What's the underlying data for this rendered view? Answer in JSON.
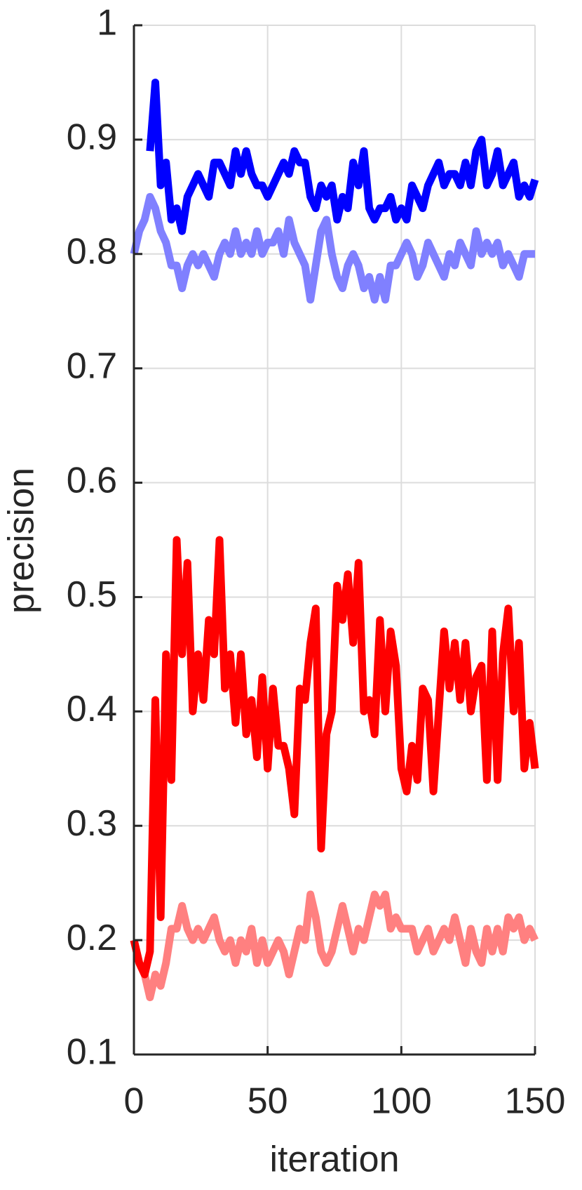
{
  "chart_data": {
    "type": "line",
    "xlabel": "iteration",
    "ylabel": "precision",
    "x": [
      0,
      2,
      4,
      6,
      8,
      10,
      12,
      14,
      16,
      18,
      20,
      22,
      24,
      26,
      28,
      30,
      32,
      34,
      36,
      38,
      40,
      42,
      44,
      46,
      48,
      50,
      52,
      54,
      56,
      58,
      60,
      62,
      64,
      66,
      68,
      70,
      72,
      74,
      76,
      78,
      80,
      82,
      84,
      86,
      88,
      90,
      92,
      94,
      96,
      98,
      100,
      102,
      104,
      106,
      108,
      110,
      112,
      114,
      116,
      118,
      120,
      122,
      124,
      126,
      128,
      130,
      132,
      134,
      136,
      138,
      140,
      142,
      144,
      146,
      148,
      150
    ],
    "series": [
      {
        "color": "#8080ff",
        "values": [
          0.8,
          0.82,
          0.83,
          0.85,
          0.84,
          0.82,
          0.81,
          0.79,
          0.79,
          0.77,
          0.79,
          0.8,
          0.79,
          0.8,
          0.79,
          0.78,
          0.8,
          0.81,
          0.8,
          0.82,
          0.8,
          0.81,
          0.8,
          0.82,
          0.8,
          0.81,
          0.81,
          0.82,
          0.8,
          0.83,
          0.81,
          0.8,
          0.79,
          0.76,
          0.79,
          0.82,
          0.83,
          0.8,
          0.78,
          0.77,
          0.79,
          0.8,
          0.79,
          0.77,
          0.78,
          0.76,
          0.78,
          0.76,
          0.79,
          0.79,
          0.8,
          0.81,
          0.8,
          0.78,
          0.79,
          0.81,
          0.8,
          0.79,
          0.78,
          0.8,
          0.79,
          0.81,
          0.8,
          0.79,
          0.82,
          0.8,
          0.81,
          0.8,
          0.81,
          0.79,
          0.8,
          0.79,
          0.78,
          0.8,
          0.8,
          0.8
        ]
      },
      {
        "color": "#0000ff",
        "values": [
          null,
          null,
          null,
          0.89,
          0.95,
          0.86,
          0.88,
          0.83,
          0.84,
          0.82,
          0.85,
          0.86,
          0.87,
          0.86,
          0.85,
          0.88,
          0.88,
          0.87,
          0.86,
          0.89,
          0.87,
          0.89,
          0.87,
          0.86,
          0.86,
          0.85,
          0.86,
          0.87,
          0.88,
          0.87,
          0.89,
          0.88,
          0.88,
          0.85,
          0.84,
          0.86,
          0.85,
          0.86,
          0.83,
          0.85,
          0.84,
          0.88,
          0.86,
          0.89,
          0.84,
          0.83,
          0.84,
          0.84,
          0.85,
          0.83,
          0.84,
          0.83,
          0.86,
          0.85,
          0.84,
          0.86,
          0.87,
          0.88,
          0.86,
          0.87,
          0.87,
          0.86,
          0.88,
          0.86,
          0.89,
          0.9,
          0.86,
          0.87,
          0.89,
          0.86,
          0.87,
          0.88,
          0.85,
          0.86,
          0.85,
          0.865
        ]
      },
      {
        "color": "#ff8080",
        "values": [
          0.2,
          0.18,
          0.17,
          0.15,
          0.17,
          0.16,
          0.18,
          0.21,
          0.21,
          0.23,
          0.21,
          0.2,
          0.21,
          0.2,
          0.21,
          0.22,
          0.2,
          0.19,
          0.2,
          0.18,
          0.2,
          0.19,
          0.21,
          0.18,
          0.2,
          0.18,
          0.19,
          0.2,
          0.19,
          0.17,
          0.19,
          0.21,
          0.2,
          0.24,
          0.22,
          0.19,
          0.18,
          0.19,
          0.21,
          0.23,
          0.21,
          0.19,
          0.21,
          0.2,
          0.22,
          0.24,
          0.23,
          0.24,
          0.21,
          0.22,
          0.21,
          0.21,
          0.21,
          0.19,
          0.2,
          0.21,
          0.19,
          0.2,
          0.21,
          0.2,
          0.22,
          0.2,
          0.18,
          0.21,
          0.19,
          0.18,
          0.21,
          0.19,
          0.21,
          0.19,
          0.22,
          0.21,
          0.22,
          0.2,
          0.21,
          0.2
        ]
      },
      {
        "color": "#ff0000",
        "values": [
          0.2,
          0.18,
          0.17,
          0.19,
          0.41,
          0.22,
          0.45,
          0.34,
          0.55,
          0.45,
          0.53,
          0.4,
          0.45,
          0.41,
          0.48,
          0.45,
          0.55,
          0.42,
          0.45,
          0.39,
          0.45,
          0.38,
          0.41,
          0.36,
          0.43,
          0.35,
          0.42,
          0.37,
          0.37,
          0.35,
          0.31,
          0.42,
          0.41,
          0.46,
          0.49,
          0.28,
          0.38,
          0.4,
          0.51,
          0.48,
          0.52,
          0.46,
          0.53,
          0.4,
          0.41,
          0.38,
          0.48,
          0.4,
          0.47,
          0.44,
          0.35,
          0.33,
          0.37,
          0.34,
          0.42,
          0.41,
          0.33,
          0.4,
          0.47,
          0.42,
          0.46,
          0.41,
          0.46,
          0.4,
          0.43,
          0.44,
          0.34,
          0.47,
          0.34,
          0.45,
          0.49,
          0.4,
          0.46,
          0.35,
          0.39,
          0.35
        ]
      }
    ],
    "xlim": [
      0,
      150
    ],
    "xticks": [
      0,
      50,
      100,
      150
    ],
    "ylim": [
      0.1,
      1
    ],
    "yticks": [
      0.1,
      0.2,
      0.3,
      0.4,
      0.5,
      0.6,
      0.7,
      0.8,
      0.9,
      1
    ],
    "grid": true
  }
}
